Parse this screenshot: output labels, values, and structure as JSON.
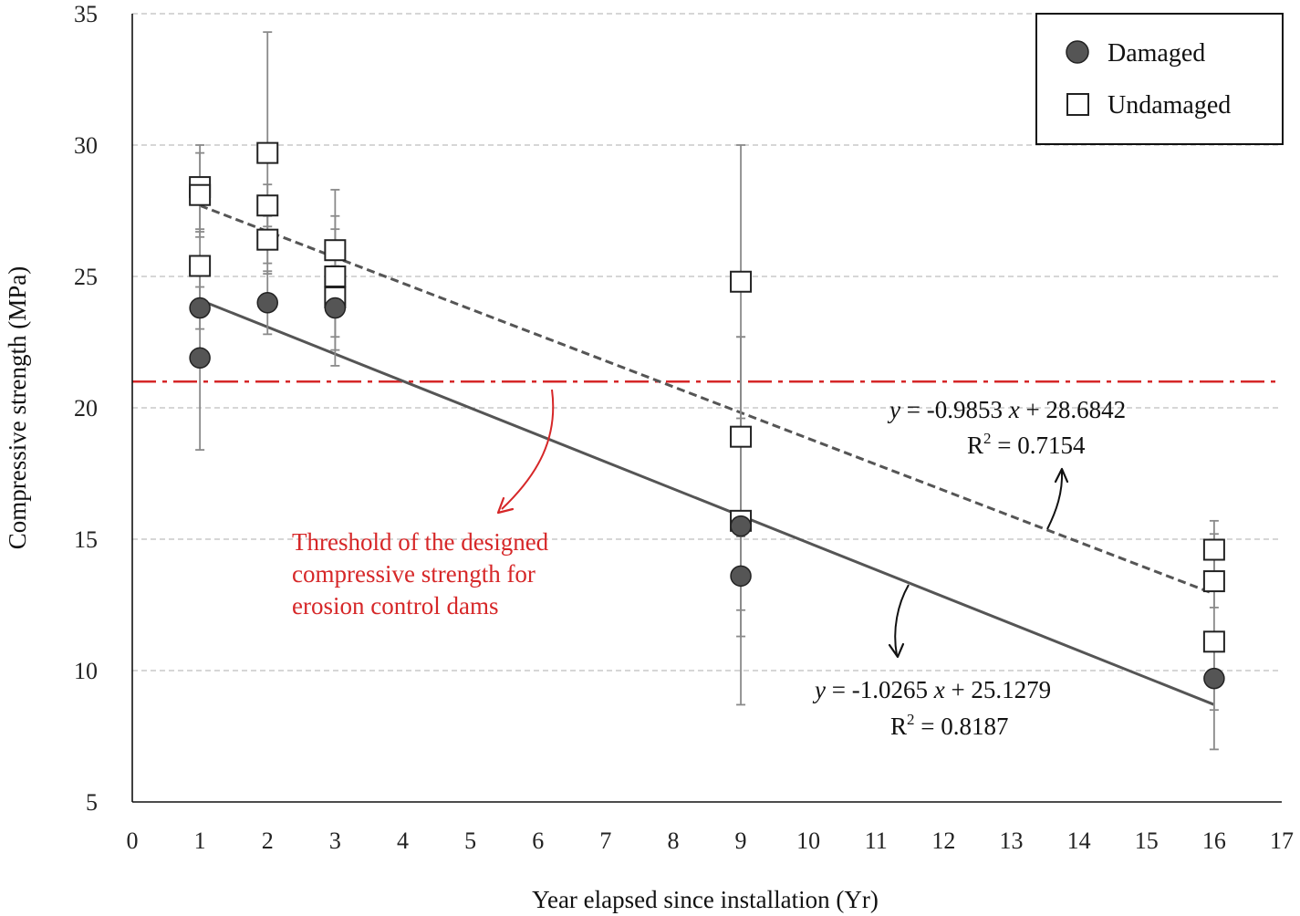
{
  "chart_data": {
    "type": "scatter",
    "xlabel": "Year elapsed since installation (Yr)",
    "ylabel": "Compressive strength (MPa)",
    "xlim": [
      0,
      17
    ],
    "ylim": [
      5,
      35
    ],
    "xticks": [
      "0",
      "1",
      "2",
      "3",
      "4",
      "5",
      "6",
      "7",
      "8",
      "9",
      "10",
      "11",
      "12",
      "13",
      "14",
      "15",
      "16",
      "17"
    ],
    "yticks": [
      "5",
      "10",
      "15",
      "20",
      "25",
      "30",
      "35"
    ],
    "grid": "horizontal dashed",
    "legend_position": "top-right",
    "series": [
      {
        "name": "Damaged",
        "marker": "circle",
        "color": "#555555",
        "points": [
          {
            "x": 1,
            "y": 23.8,
            "err": 0.8
          },
          {
            "x": 1,
            "y": 21.9,
            "err": 3.5
          },
          {
            "x": 2,
            "y": 24.0,
            "err": 1.2
          },
          {
            "x": 3,
            "y": 23.8,
            "err": 1.6
          },
          {
            "x": 9,
            "y": 15.5,
            "err": 3.2
          },
          {
            "x": 9,
            "y": 13.6,
            "err": 2.3
          },
          {
            "x": 16,
            "y": 9.7,
            "err": 1.2
          }
        ]
      },
      {
        "name": "Undamaged",
        "marker": "square",
        "color": "#ffffff",
        "points": [
          {
            "x": 1,
            "y": 28.4,
            "err": 1.6
          },
          {
            "x": 1,
            "y": 28.1,
            "err": 1.6
          },
          {
            "x": 1,
            "y": 25.4,
            "err": 1.3
          },
          {
            "x": 2,
            "y": 29.7,
            "err": 4.6
          },
          {
            "x": 2,
            "y": 27.7,
            "err": 0.8
          },
          {
            "x": 2,
            "y": 26.4,
            "err": 0.9
          },
          {
            "x": 3,
            "y": 26.0,
            "err": 2.3
          },
          {
            "x": 3,
            "y": 25.0,
            "err": 2.3
          },
          {
            "x": 3,
            "y": 24.2,
            "err": 2.6
          },
          {
            "x": 9,
            "y": 24.8,
            "err": 5.2
          },
          {
            "x": 9,
            "y": 18.9,
            "err": 3.8
          },
          {
            "x": 9,
            "y": 15.7,
            "err": 7.0
          },
          {
            "x": 16,
            "y": 14.6,
            "err": 1.1
          },
          {
            "x": 16,
            "y": 13.4,
            "err": 1.0
          },
          {
            "x": 16,
            "y": 11.1,
            "err": 4.1
          }
        ]
      }
    ],
    "trendlines": [
      {
        "series": "Undamaged",
        "slope": -0.9853,
        "intercept": 28.6842,
        "x_range": [
          1,
          16
        ],
        "style": "dashed",
        "color": "#555555"
      },
      {
        "series": "Damaged",
        "slope": -1.0265,
        "intercept": 25.1279,
        "x_range": [
          1,
          16
        ],
        "style": "solid",
        "color": "#555555"
      }
    ],
    "threshold": {
      "y": 21,
      "color": "#d62728",
      "style": "dash-dot"
    },
    "annotations": {
      "undamaged_eq_pre": "y",
      "undamaged_eq_mid": " = -0.9853 ",
      "undamaged_eq_x": "x",
      "undamaged_eq_post": " + 28.6842",
      "undamaged_r2_base": "R",
      "undamaged_r2_exp": "2",
      "undamaged_r2_val": " = 0.7154",
      "damaged_eq_pre": "y",
      "damaged_eq_mid": " = -1.0265 ",
      "damaged_eq_x": "x",
      "damaged_eq_post": " + 25.1279",
      "damaged_r2_base": "R",
      "damaged_r2_exp": "2",
      "damaged_r2_val": " = 0.8187",
      "threshold_line1": "Threshold of the designed",
      "threshold_line2": "compressive strength for",
      "threshold_line3": "erosion control dams"
    }
  }
}
